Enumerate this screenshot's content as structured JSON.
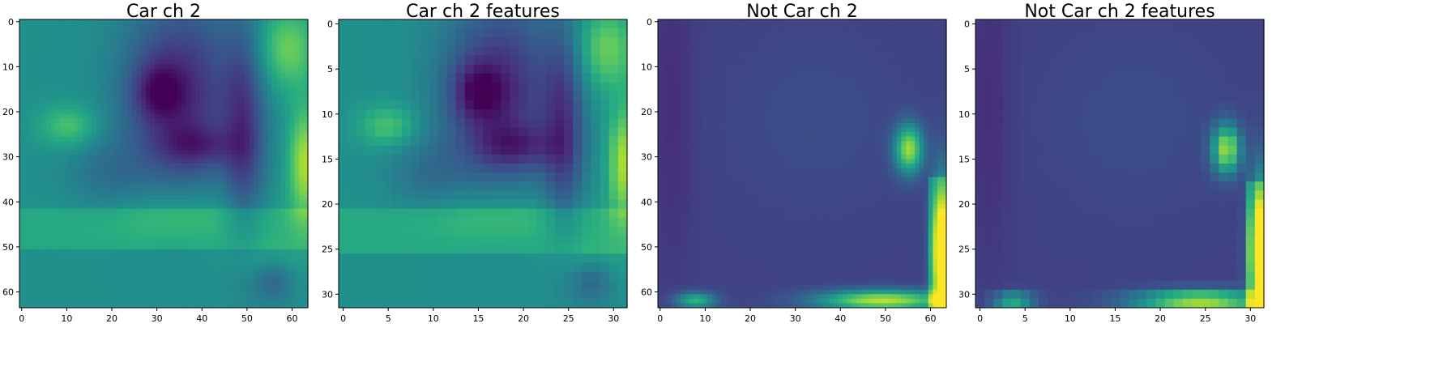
{
  "chart_data": [
    {
      "type": "heatmap",
      "title": "Car ch 2",
      "size": 64,
      "xlim": [
        -0.5,
        63.5
      ],
      "ylim": [
        63.5,
        -0.5
      ],
      "xticks": [
        0,
        10,
        20,
        30,
        40,
        50,
        60
      ],
      "yticks": [
        0,
        10,
        20,
        30,
        40,
        50,
        60
      ],
      "colormap": "viridis",
      "grid": false,
      "pattern": "car"
    },
    {
      "type": "heatmap",
      "title": "Car ch 2 features",
      "size": 32,
      "xlim": [
        -0.5,
        31.5
      ],
      "ylim": [
        31.5,
        -0.5
      ],
      "xticks": [
        0,
        5,
        10,
        15,
        20,
        25,
        30
      ],
      "yticks": [
        0,
        5,
        10,
        15,
        20,
        25,
        30
      ],
      "colormap": "viridis",
      "grid": false,
      "pattern": "car"
    },
    {
      "type": "heatmap",
      "title": "Not Car ch 2",
      "size": 64,
      "xlim": [
        -0.5,
        63.5
      ],
      "ylim": [
        63.5,
        -0.5
      ],
      "xticks": [
        0,
        10,
        20,
        30,
        40,
        50,
        60
      ],
      "yticks": [
        0,
        10,
        20,
        30,
        40,
        50,
        60
      ],
      "colormap": "viridis",
      "grid": false,
      "pattern": "notcar"
    },
    {
      "type": "heatmap",
      "title": "Not Car ch 2 features",
      "size": 32,
      "xlim": [
        -0.5,
        31.5
      ],
      "ylim": [
        31.5,
        -0.5
      ],
      "xticks": [
        0,
        5,
        10,
        15,
        20,
        25,
        30
      ],
      "yticks": [
        0,
        5,
        10,
        15,
        20,
        25,
        30
      ],
      "colormap": "viridis",
      "grid": false,
      "pattern": "notcar"
    }
  ]
}
